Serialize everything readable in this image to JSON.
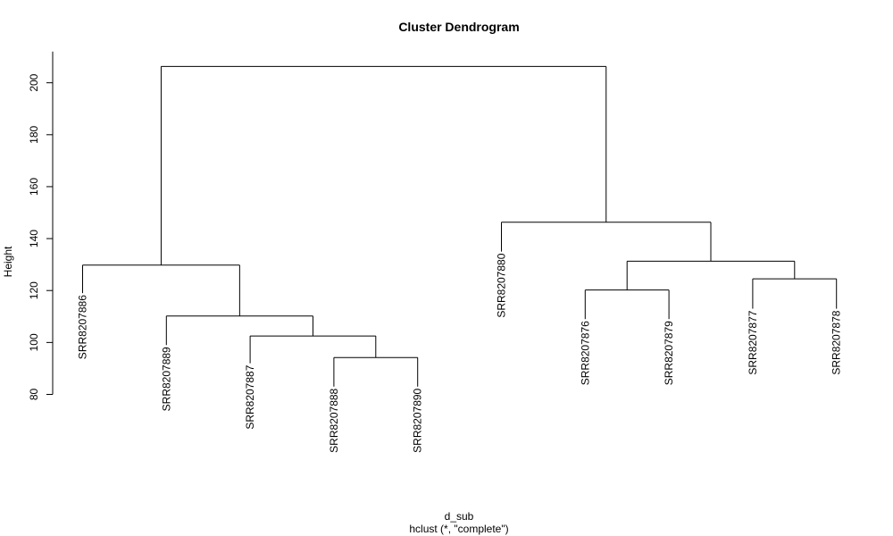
{
  "chart_data": {
    "type": "dendrogram",
    "title": "Cluster Dendrogram",
    "ylabel": "Height",
    "xlabel": "d_sub",
    "sublabel": "hclust (*, \"complete\")",
    "ylim": [
      80,
      212
    ],
    "yticks": [
      80,
      100,
      120,
      140,
      160,
      180,
      200
    ],
    "leaves": [
      {
        "name": "SRR8207886",
        "height": 119
      },
      {
        "name": "SRR8207889",
        "height": 99
      },
      {
        "name": "SRR8207887",
        "height": 92
      },
      {
        "name": "SRR8207888",
        "height": 83
      },
      {
        "name": "SRR8207890",
        "height": 83
      },
      {
        "name": "SRR8207880",
        "height": 135
      },
      {
        "name": "SRR8207876",
        "height": 109
      },
      {
        "name": "SRR8207879",
        "height": 109
      },
      {
        "name": "SRR8207877",
        "height": 113
      },
      {
        "name": "SRR8207878",
        "height": 113
      }
    ],
    "merges": [
      {
        "left": "SRR8207888",
        "right": "SRR8207890",
        "height": 94.2
      },
      {
        "left": "SRR8207887",
        "right": "m1",
        "height": 102.5
      },
      {
        "left": "SRR8207889",
        "right": "m2",
        "height": 110.2
      },
      {
        "left": "SRR8207886",
        "right": "m3",
        "height": 129.8
      },
      {
        "left": "SRR8207876",
        "right": "SRR8207879",
        "height": 120.2
      },
      {
        "left": "SRR8207877",
        "right": "SRR8207878",
        "height": 124.5
      },
      {
        "left": "m5",
        "right": "m6",
        "height": 131.3
      },
      {
        "left": "SRR8207880",
        "right": "m7",
        "height": 146.3
      },
      {
        "left": "m4",
        "right": "m8",
        "height": 206.3
      }
    ]
  }
}
